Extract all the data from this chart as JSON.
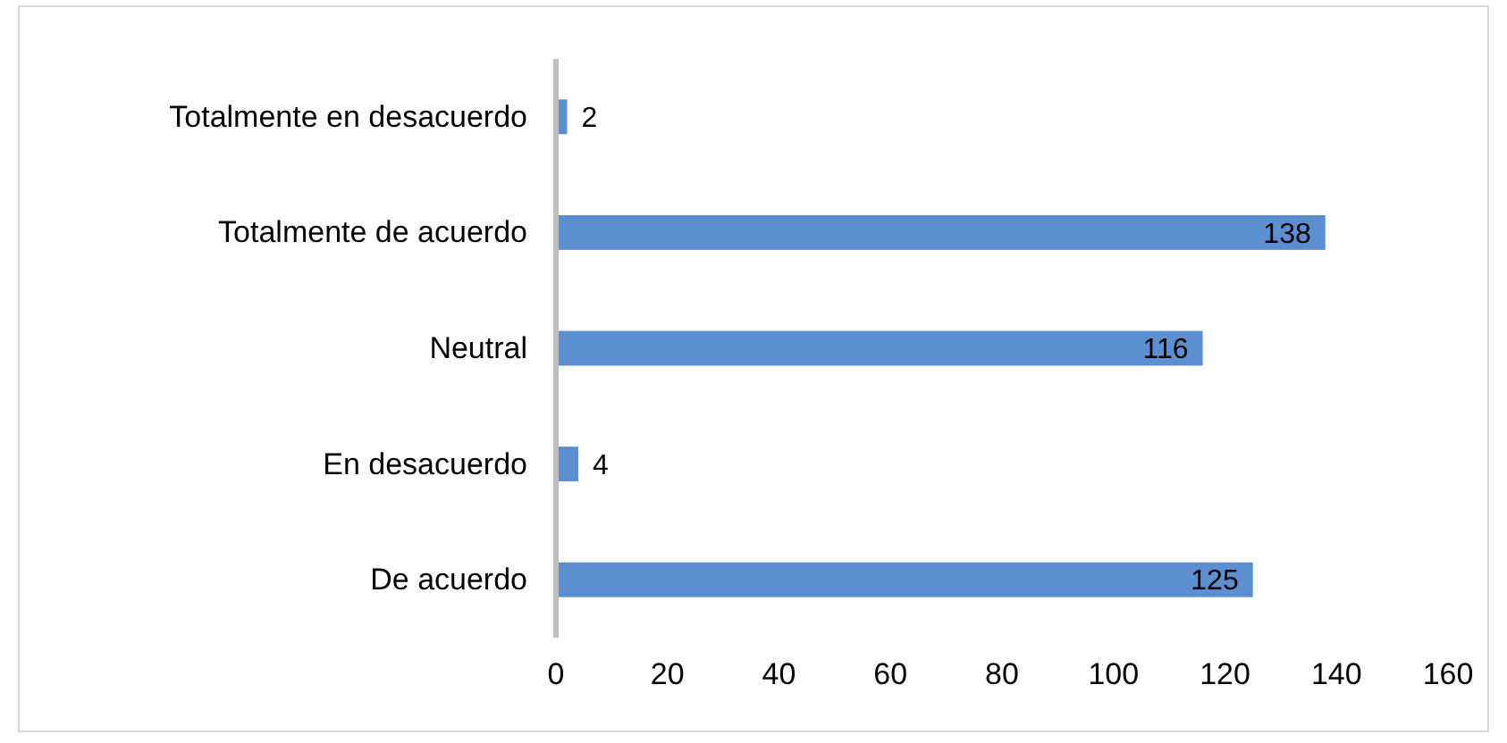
{
  "chart_data": {
    "type": "bar",
    "orientation": "horizontal",
    "categories": [
      "Totalmente en desacuerdo",
      "Totalmente de acuerdo",
      "Neutral",
      "En desacuerdo",
      "De acuerdo"
    ],
    "values": [
      2,
      138,
      116,
      4,
      125
    ],
    "color": "#5b8fd0",
    "xlim": [
      0,
      160
    ],
    "xticks": [
      0,
      20,
      40,
      60,
      80,
      100,
      120,
      140,
      160
    ],
    "grid": false,
    "data_labels": true
  }
}
